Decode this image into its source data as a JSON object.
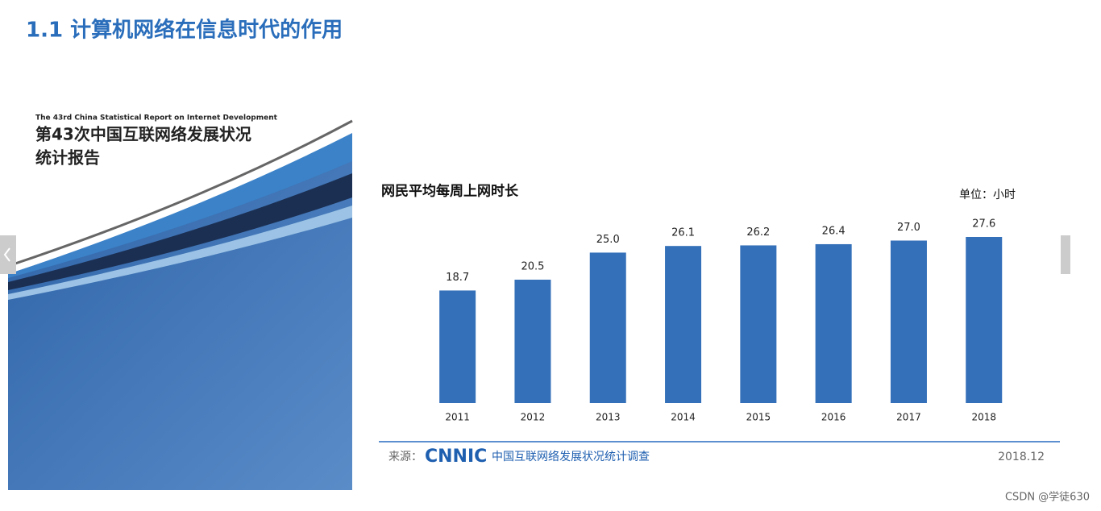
{
  "page_title": "1.1 计算机网络在信息时代的作用",
  "cover": {
    "english_title": "The 43rd China Statistical Report on Internet Development",
    "title_line1": "第43次中国互联网络发展状况",
    "title_line2": "统计报告"
  },
  "chart_data": {
    "type": "bar",
    "title": "网民平均每周上网时长",
    "unit": "单位：小时",
    "categories": [
      "2011",
      "2012",
      "2013",
      "2014",
      "2015",
      "2016",
      "2017",
      "2018"
    ],
    "values": [
      18.7,
      20.5,
      25.0,
      26.1,
      26.2,
      26.4,
      27.0,
      27.6
    ],
    "value_labels": [
      "18.7",
      "20.5",
      "25.0",
      "26.1",
      "26.2",
      "26.4",
      "27.0",
      "27.6"
    ],
    "color": "#3470b9"
  },
  "source": {
    "prefix": "来源：",
    "brand": "CNNIC",
    "name": "中国互联网络发展状况统计调查",
    "date": "2018.12"
  },
  "footer": "CSDN @学徒630"
}
